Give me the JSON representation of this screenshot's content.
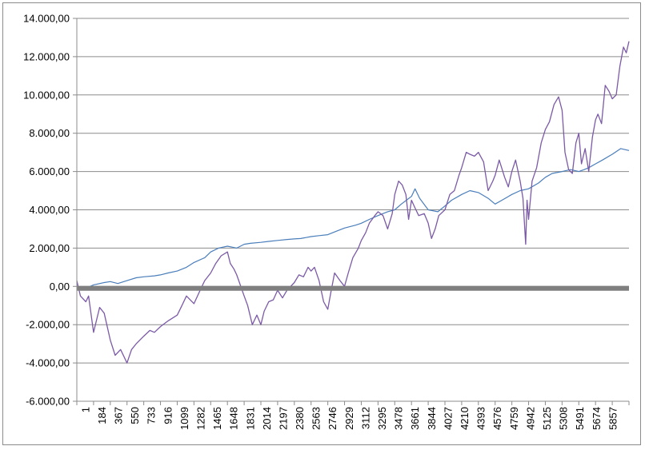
{
  "chart_data": {
    "type": "line",
    "title": "",
    "xlabel": "",
    "ylabel": "",
    "ylim": [
      -6000,
      14000
    ],
    "y_ticks": [
      14000,
      12000,
      10000,
      8000,
      6000,
      4000,
      2000,
      0,
      -2000,
      -4000,
      -6000
    ],
    "y_tick_labels": [
      "14.000,00",
      "12.000,00",
      "10.000,00",
      "8.000,00",
      "6.000,00",
      "4.000,00",
      "2.000,00",
      "0,00",
      "-2.000,00",
      "-4.000,00",
      "-6.000,00"
    ],
    "xlim": [
      1,
      6040
    ],
    "x_tick_labels": [
      "1",
      "184",
      "367",
      "550",
      "733",
      "916",
      "1099",
      "1282",
      "1465",
      "1648",
      "1831",
      "2014",
      "2197",
      "2380",
      "2563",
      "2746",
      "2929",
      "3112",
      "3295",
      "3478",
      "3661",
      "3844",
      "4027",
      "4210",
      "4393",
      "4576",
      "4759",
      "4942",
      "5125",
      "5308",
      "5491",
      "5674",
      "5857"
    ],
    "grid": true,
    "legend": "none",
    "series": [
      {
        "color": "#4a7ebb",
        "x": [
          1,
          100,
          184,
          300,
          367,
          450,
          550,
          650,
          733,
          850,
          916,
          1000,
          1099,
          1200,
          1282,
          1400,
          1465,
          1550,
          1648,
          1700,
          1750,
          1831,
          1900,
          2014,
          2100,
          2197,
          2300,
          2380,
          2450,
          2563,
          2650,
          2746,
          2850,
          2929,
          3050,
          3112,
          3200,
          3295,
          3400,
          3478,
          3550,
          3661,
          3700,
          3750,
          3844,
          3950,
          4027,
          4100,
          4210,
          4300,
          4393,
          4500,
          4576,
          4650,
          4759,
          4850,
          4942,
          5050,
          5125,
          5200,
          5308,
          5400,
          5491,
          5550,
          5600,
          5674,
          5750,
          5857,
          5950,
          6040
        ],
        "y": [
          0,
          -100,
          80,
          200,
          250,
          150,
          300,
          450,
          500,
          550,
          600,
          700,
          800,
          1000,
          1250,
          1500,
          1800,
          2000,
          2100,
          2050,
          2000,
          2200,
          2250,
          2300,
          2350,
          2400,
          2450,
          2480,
          2500,
          2600,
          2650,
          2700,
          2900,
          3050,
          3200,
          3300,
          3500,
          3700,
          3900,
          4000,
          4300,
          4700,
          5100,
          4600,
          4000,
          3900,
          4200,
          4500,
          4800,
          5000,
          4900,
          4600,
          4300,
          4500,
          4800,
          5000,
          5100,
          5400,
          5700,
          5900,
          6000,
          6100,
          6000,
          6100,
          6200,
          6400,
          6600,
          6900,
          7200,
          7100
        ]
      },
      {
        "color": "#7b5aa6",
        "x": [
          1,
          40,
          100,
          130,
          184,
          250,
          300,
          367,
          420,
          480,
          550,
          600,
          650,
          733,
          800,
          850,
          916,
          1000,
          1099,
          1150,
          1200,
          1282,
          1350,
          1400,
          1465,
          1520,
          1580,
          1648,
          1680,
          1720,
          1750,
          1831,
          1870,
          1920,
          1970,
          2014,
          2050,
          2100,
          2150,
          2197,
          2250,
          2300,
          2380,
          2430,
          2480,
          2530,
          2563,
          2600,
          2650,
          2700,
          2746,
          2780,
          2820,
          2880,
          2929,
          2970,
          3020,
          3080,
          3112,
          3160,
          3200,
          3260,
          3295,
          3350,
          3400,
          3450,
          3478,
          3520,
          3560,
          3600,
          3630,
          3661,
          3700,
          3740,
          3800,
          3844,
          3880,
          3920,
          3960,
          4027,
          4080,
          4130,
          4180,
          4210,
          4260,
          4300,
          4350,
          4393,
          4450,
          4500,
          4550,
          4576,
          4620,
          4680,
          4720,
          4759,
          4800,
          4850,
          4880,
          4910,
          4925,
          4942,
          4980,
          5030,
          5080,
          5125,
          5170,
          5220,
          5270,
          5308,
          5340,
          5380,
          5420,
          5460,
          5491,
          5520,
          5560,
          5600,
          5640,
          5674,
          5700,
          5740,
          5780,
          5820,
          5857,
          5900,
          5940,
          5980,
          6010,
          6040
        ],
        "y": [
          300,
          -500,
          -800,
          -500,
          -2400,
          -1100,
          -1400,
          -2800,
          -3600,
          -3300,
          -4000,
          -3300,
          -3000,
          -2600,
          -2300,
          -2400,
          -2100,
          -1800,
          -1500,
          -1000,
          -500,
          -900,
          -200,
          300,
          700,
          1200,
          1600,
          1800,
          1200,
          900,
          600,
          -500,
          -1000,
          -2000,
          -1500,
          -2000,
          -1300,
          -800,
          -700,
          -200,
          -600,
          -200,
          200,
          600,
          500,
          1000,
          800,
          1000,
          300,
          -800,
          -1200,
          -300,
          700,
          300,
          0,
          700,
          1500,
          2000,
          2400,
          2800,
          3300,
          3700,
          3900,
          3700,
          3000,
          3800,
          4800,
          5500,
          5300,
          4800,
          3500,
          4500,
          4100,
          3700,
          3800,
          3300,
          2500,
          3000,
          3700,
          4000,
          4800,
          5000,
          5800,
          6200,
          7000,
          6900,
          6800,
          7000,
          6500,
          5000,
          5500,
          5800,
          6600,
          5700,
          5200,
          6000,
          6600,
          5500,
          4600,
          2200,
          4500,
          3500,
          5500,
          6200,
          7500,
          8200,
          8600,
          9500,
          9900,
          9200,
          7000,
          6100,
          5900,
          7500,
          8000,
          6400,
          7200,
          6000,
          7800,
          8700,
          9000,
          8500,
          10500,
          10200,
          9800,
          10000,
          11500,
          12500,
          12200,
          12800
        ]
      },
      {
        "color": "#7f7f7f",
        "x": [
          1,
          6040
        ],
        "y": [
          -100,
          -100
        ]
      }
    ]
  }
}
